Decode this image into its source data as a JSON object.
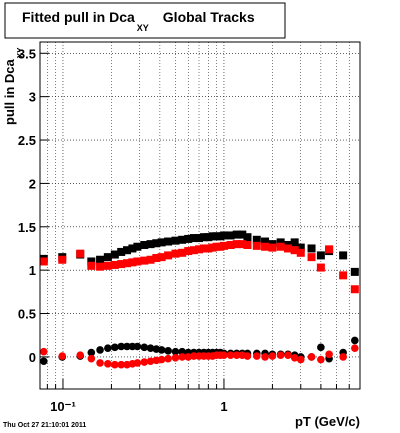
{
  "chart_data": {
    "type": "scatter",
    "title": "Fitted pull in Dca",
    "title_subscript": "XY",
    "title_suffix": "Global Tracks",
    "y_label": "pull in Dca",
    "y_label_subscript": "XY",
    "x_label": "pT (GeV/c)",
    "timestamp": "Thu Oct 27 21:10:01 2011",
    "log_x": true,
    "grid": true,
    "xlim": [
      0.072,
      7
    ],
    "ylim": [
      -0.37,
      3.63
    ],
    "xticks": [
      {
        "value": 0.1,
        "label": "10⁻¹"
      },
      1
    ],
    "xminor_ticks": [
      0.08,
      0.09,
      0.2,
      0.3,
      0.4,
      0.5,
      0.6,
      0.7,
      0.8,
      0.9,
      2,
      3,
      4,
      5,
      6,
      7
    ],
    "yticks": [
      0,
      0.5,
      1,
      1.5,
      2,
      2.5,
      3,
      3.5
    ],
    "x": [
      0.076,
      0.099,
      0.128,
      0.15,
      0.17,
      0.19,
      0.21,
      0.23,
      0.25,
      0.27,
      0.29,
      0.32,
      0.35,
      0.38,
      0.41,
      0.45,
      0.5,
      0.55,
      0.6,
      0.65,
      0.7,
      0.75,
      0.8,
      0.85,
      0.9,
      0.95,
      1.0,
      1.1,
      1.2,
      1.3,
      1.4,
      1.6,
      1.8,
      2.0,
      2.25,
      2.5,
      2.75,
      3.0,
      3.5,
      4.0,
      4.5,
      5.5,
      6.5
    ],
    "series": [
      {
        "color": "#000000",
        "marker": "square",
        "values": [
          1.13,
          1.15,
          1.18,
          1.1,
          1.12,
          1.15,
          1.18,
          1.21,
          1.23,
          1.25,
          1.27,
          1.29,
          1.3,
          1.31,
          1.32,
          1.33,
          1.34,
          1.35,
          1.36,
          1.37,
          1.37,
          1.38,
          1.38,
          1.39,
          1.39,
          1.39,
          1.4,
          1.4,
          1.41,
          1.41,
          1.38,
          1.35,
          1.33,
          1.3,
          1.32,
          1.29,
          1.32,
          1.26,
          1.25,
          1.17,
          1.22,
          1.17,
          0.98
        ]
      },
      {
        "color": "#ff0000",
        "marker": "square",
        "values": [
          1.1,
          1.12,
          1.19,
          1.05,
          1.04,
          1.05,
          1.06,
          1.07,
          1.08,
          1.09,
          1.1,
          1.11,
          1.12,
          1.14,
          1.15,
          1.17,
          1.19,
          1.2,
          1.22,
          1.23,
          1.24,
          1.25,
          1.25,
          1.26,
          1.27,
          1.27,
          1.28,
          1.29,
          1.3,
          1.3,
          1.29,
          1.28,
          1.27,
          1.26,
          1.27,
          1.25,
          1.23,
          1.2,
          1.15,
          1.03,
          1.24,
          0.94,
          0.78
        ]
      },
      {
        "color": "#000000",
        "marker": "circle",
        "values": [
          -0.05,
          0.0,
          0.01,
          0.05,
          0.08,
          0.1,
          0.11,
          0.12,
          0.12,
          0.12,
          0.12,
          0.11,
          0.1,
          0.09,
          0.08,
          0.07,
          0.06,
          0.06,
          0.05,
          0.05,
          0.05,
          0.05,
          0.05,
          0.05,
          0.05,
          0.05,
          0.04,
          0.04,
          0.04,
          0.04,
          0.04,
          0.04,
          0.04,
          0.03,
          0.03,
          0.03,
          0.02,
          0.0,
          0.0,
          0.11,
          -0.02,
          0.05,
          0.19
        ]
      },
      {
        "color": "#ff0000",
        "marker": "circle",
        "values": [
          0.06,
          0.01,
          0.02,
          -0.02,
          -0.07,
          -0.08,
          -0.09,
          -0.09,
          -0.09,
          -0.08,
          -0.07,
          -0.06,
          -0.05,
          -0.04,
          -0.03,
          -0.02,
          -0.01,
          0.0,
          0.0,
          0.01,
          0.01,
          0.01,
          0.01,
          0.01,
          0.02,
          0.02,
          0.02,
          0.02,
          0.02,
          0.02,
          0.01,
          0.01,
          0.0,
          0.01,
          0.02,
          0.02,
          -0.01,
          -0.03,
          0.0,
          -0.03,
          0.03,
          0.0,
          0.1
        ]
      }
    ]
  }
}
